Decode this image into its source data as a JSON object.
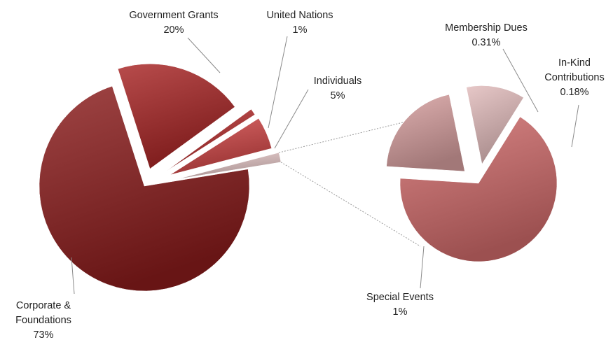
{
  "chart_data": {
    "type": "pie",
    "subtype": "pie-of-pie",
    "main_pie": {
      "slices": [
        {
          "id": "corporate",
          "label_lines": [
            "Corporate &",
            "Foundations"
          ],
          "value_text": "73%",
          "value": 73,
          "color": "#8b1c1c"
        },
        {
          "id": "government",
          "label_lines": [
            "Government Grants"
          ],
          "value_text": "20%",
          "value": 20,
          "color": "#a82525"
        },
        {
          "id": "un",
          "label_lines": [
            "United Nations"
          ],
          "value_text": "1%",
          "value": 1,
          "color": "#b52d2d"
        },
        {
          "id": "individuals",
          "label_lines": [
            "Individuals"
          ],
          "value_text": "5%",
          "value": 5,
          "color": "#cf4545"
        },
        {
          "id": "other",
          "label_lines": [],
          "value_text": "",
          "value": 1.49,
          "color": "#e3c4c4"
        }
      ]
    },
    "secondary_pie": {
      "slices": [
        {
          "id": "special",
          "label_lines": [
            "Special Events"
          ],
          "value_text": "1%",
          "value": 1,
          "color": "#d06a6a"
        },
        {
          "id": "membership",
          "label_lines": [
            "Membership Dues"
          ],
          "value_text": "0.31%",
          "value": 0.31,
          "color": "#d8a0a0"
        },
        {
          "id": "inkind",
          "label_lines": [
            "In-Kind",
            "Contributions"
          ],
          "value_text": "0.18%",
          "value": 0.18,
          "color": "#e2bcbc"
        }
      ]
    }
  }
}
